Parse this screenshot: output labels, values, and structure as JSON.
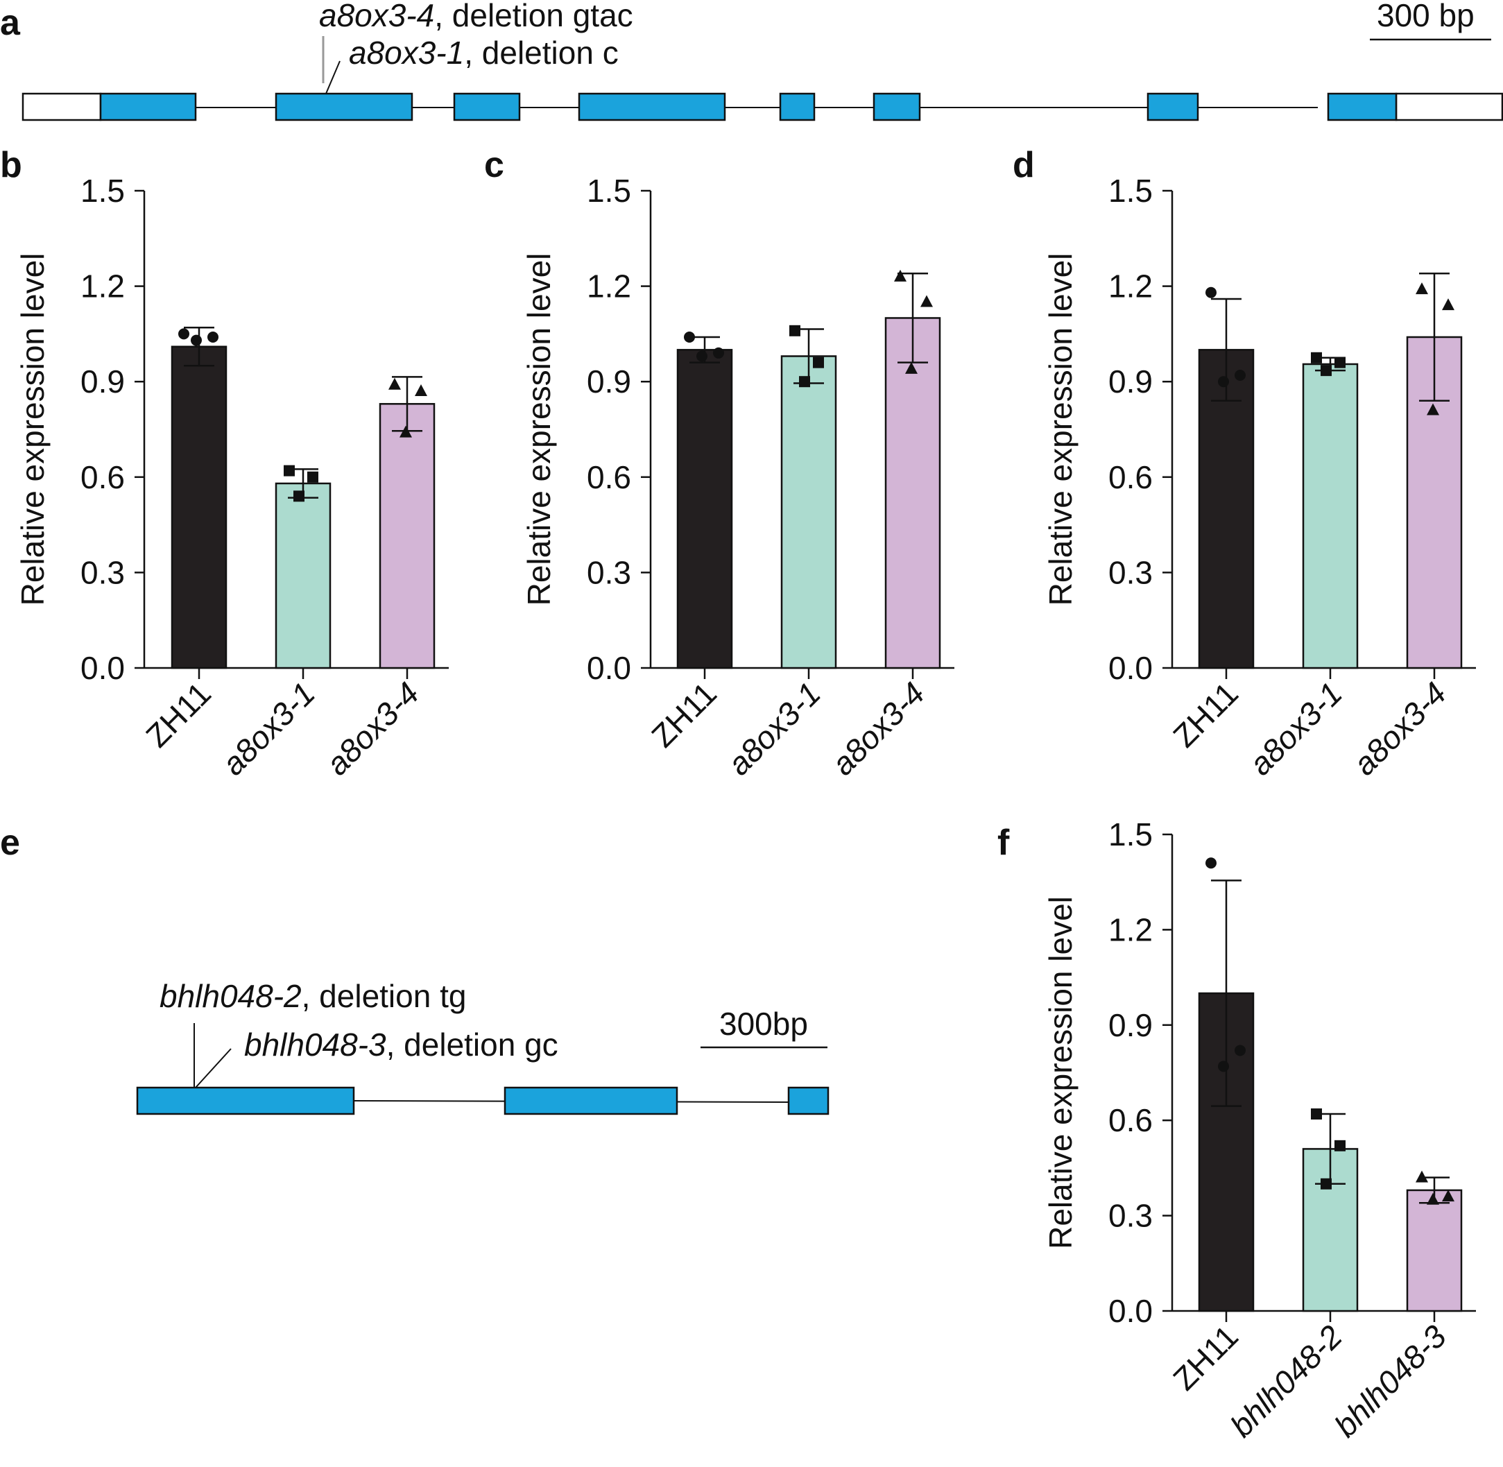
{
  "panels": {
    "a": "a",
    "b": "b",
    "c": "c",
    "d": "d",
    "e": "e",
    "f": "f"
  },
  "gene_a": {
    "scale_label": "300 bp",
    "annotations": [
      {
        "allele": "a8ox3-4",
        "desc": ", deletion gtac"
      },
      {
        "allele": "a8ox3-1",
        "desc": ", deletion c"
      }
    ],
    "colors": {
      "exon": "#1ba3dc",
      "utr": "#ffffff",
      "outline": "#111111"
    }
  },
  "gene_e": {
    "scale_label": "300bp",
    "annotations": [
      {
        "allele": "bhlh048-2",
        "desc": ", deletion tg"
      },
      {
        "allele": "bhlh048-3",
        "desc": ", deletion gc"
      }
    ]
  },
  "bar_colors": [
    "#231f20",
    "#acdbcf",
    "#d3b5d6"
  ],
  "chart_data": [
    {
      "panel": "b",
      "type": "bar",
      "ylabel": "Relative expression level",
      "ylim": [
        0,
        1.5
      ],
      "yticks": [
        "0.0",
        "0.3",
        "0.6",
        "0.9",
        "1.2",
        "1.5"
      ],
      "categories": [
        "ZH11",
        "a8ox3-1",
        "a8ox3-4"
      ],
      "values": [
        1.01,
        0.58,
        0.83
      ],
      "errors": [
        0.06,
        0.045,
        0.085
      ],
      "points": [
        [
          1.05,
          1.04,
          1.03
        ],
        [
          0.62,
          0.6,
          0.54
        ],
        [
          0.89,
          0.87,
          0.74
        ]
      ]
    },
    {
      "panel": "c",
      "type": "bar",
      "ylabel": "Relative expression level",
      "ylim": [
        0,
        1.5
      ],
      "yticks": [
        "0.0",
        "0.3",
        "0.6",
        "0.9",
        "1.2",
        "1.5"
      ],
      "categories": [
        "ZH11",
        "a8ox3-1",
        "a8ox3-4"
      ],
      "values": [
        1.0,
        0.98,
        1.1
      ],
      "errors": [
        0.04,
        0.085,
        0.14
      ],
      "points": [
        [
          1.04,
          0.99,
          0.98
        ],
        [
          1.06,
          0.96,
          0.9
        ],
        [
          1.23,
          1.15,
          0.94
        ]
      ]
    },
    {
      "panel": "d",
      "type": "bar",
      "ylabel": "Relative expression level",
      "ylim": [
        0,
        1.5
      ],
      "yticks": [
        "0.0",
        "0.3",
        "0.6",
        "0.9",
        "1.2",
        "1.5"
      ],
      "categories": [
        "ZH11",
        "a8ox3-1",
        "a8ox3-4"
      ],
      "values": [
        1.0,
        0.955,
        1.04
      ],
      "errors": [
        0.16,
        0.02,
        0.2
      ],
      "points": [
        [
          1.18,
          0.92,
          0.9
        ],
        [
          0.975,
          0.96,
          0.935
        ],
        [
          1.19,
          1.14,
          0.81
        ]
      ]
    },
    {
      "panel": "f",
      "type": "bar",
      "ylabel": "Relative expression level",
      "ylim": [
        0,
        1.5
      ],
      "yticks": [
        "0.0",
        "0.3",
        "0.6",
        "0.9",
        "1.2",
        "1.5"
      ],
      "categories": [
        "ZH11",
        "bhlh048-2",
        "bhlh048-3"
      ],
      "values": [
        1.0,
        0.51,
        0.38
      ],
      "errors": [
        0.355,
        0.11,
        0.04
      ],
      "points": [
        [
          1.41,
          0.82,
          0.77
        ],
        [
          0.62,
          0.52,
          0.4
        ],
        [
          0.42,
          0.36,
          0.35
        ]
      ]
    }
  ]
}
